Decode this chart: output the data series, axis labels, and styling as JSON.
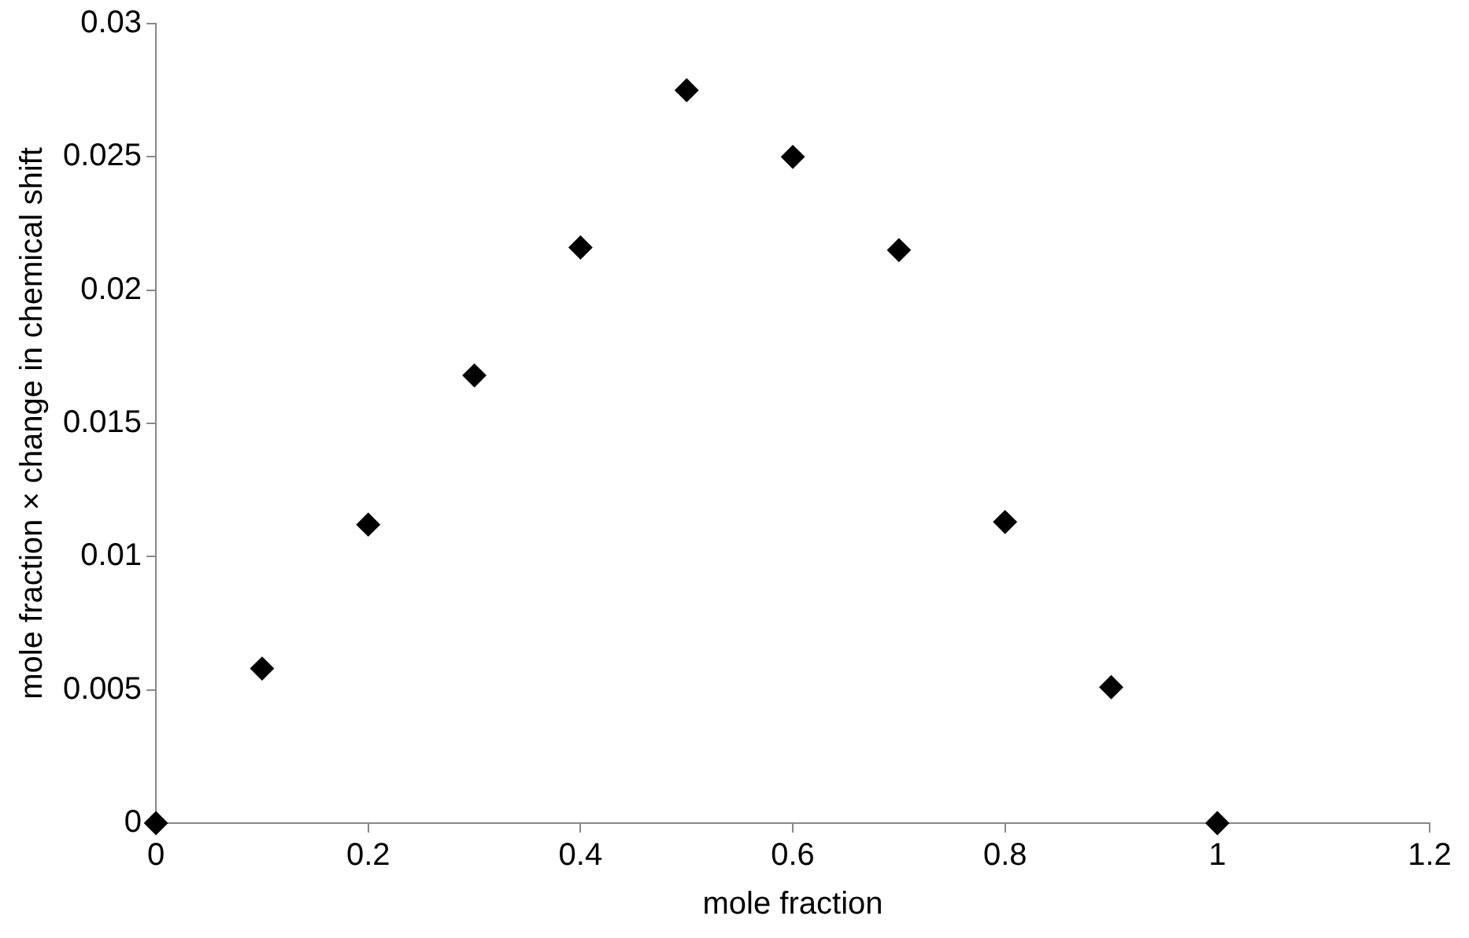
{
  "chart_data": {
    "type": "scatter",
    "xlabel": "mole fraction",
    "ylabel": "mole fraction × change in chemical shift",
    "x": [
      0,
      0.1,
      0.2,
      0.3,
      0.4,
      0.5,
      0.6,
      0.7,
      0.8,
      0.9,
      1
    ],
    "series": [
      {
        "color": "#000000",
        "values": [
          0,
          0.0058,
          0.0112,
          0.0168,
          0.0216,
          0.0275,
          0.025,
          0.0215,
          0.0113,
          0.0051,
          0
        ]
      }
    ],
    "xlim": [
      0,
      1.2
    ],
    "xticks": [
      0,
      0.2,
      0.4,
      0.6,
      0.8,
      1,
      1.2
    ],
    "ylim": [
      0,
      0.03
    ],
    "yticks": [
      0,
      0.005,
      0.01,
      0.015,
      0.02,
      0.025,
      0.03
    ],
    "grid": false,
    "legend": false,
    "marker": "diamond"
  }
}
